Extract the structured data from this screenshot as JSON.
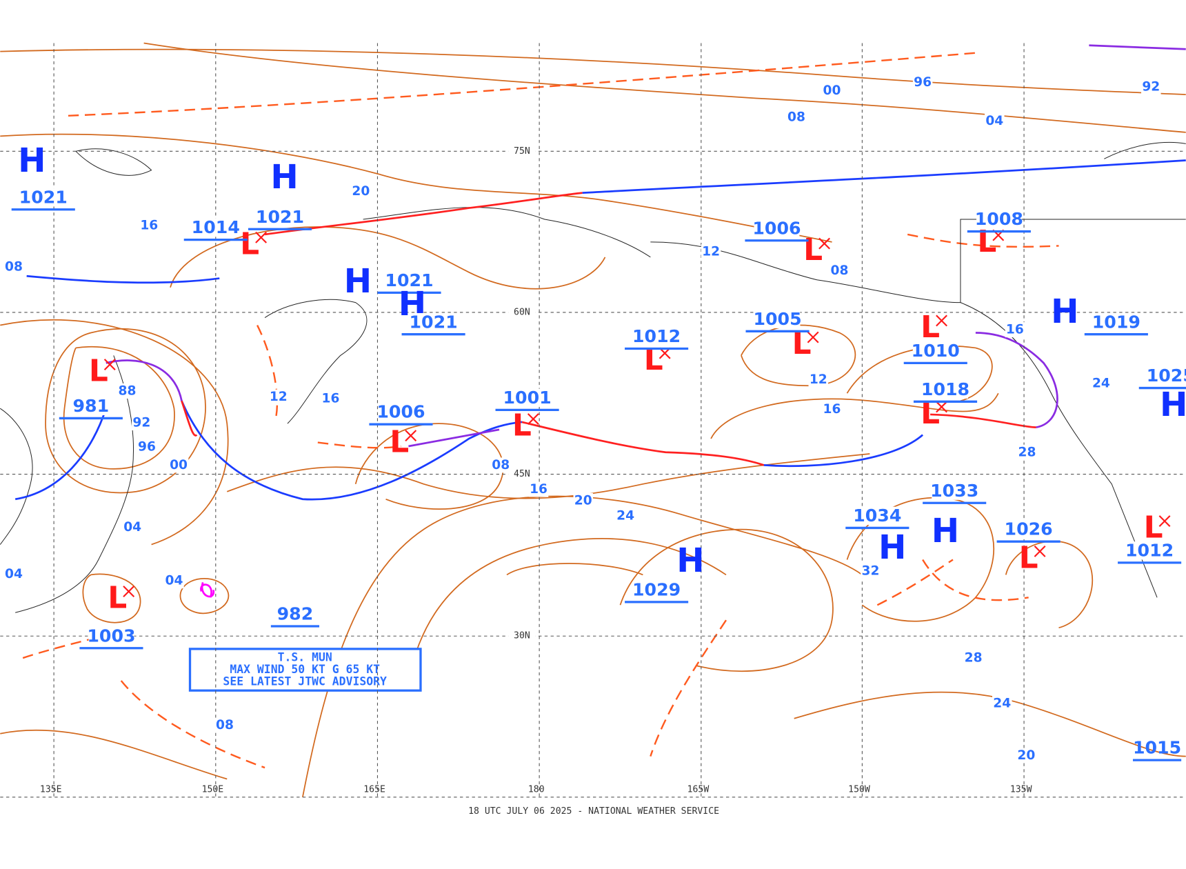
{
  "footer": "18 UTC JULY 06 2025 - NATIONAL WEATHER SERVICE",
  "latitude_labels": [
    "75N",
    "60N",
    "45N",
    "30N"
  ],
  "longitude_labels": [
    "135E",
    "150E",
    "165E",
    "180",
    "165W",
    "150W",
    "135W"
  ],
  "pressure_centers": [
    {
      "symbol": "H",
      "value": "1021"
    },
    {
      "symbol": "H",
      "value": "1021"
    },
    {
      "symbol": "L",
      "value": "1014"
    },
    {
      "symbol": "H",
      "value": "1021"
    },
    {
      "symbol": "H",
      "value": "1021"
    },
    {
      "symbol": "L",
      "value": "981"
    },
    {
      "symbol": "L",
      "value": "1006"
    },
    {
      "symbol": "L",
      "value": "1001"
    },
    {
      "symbol": "L",
      "value": "1012"
    },
    {
      "symbol": "L",
      "value": "1006"
    },
    {
      "symbol": "L",
      "value": "1005"
    },
    {
      "symbol": "L",
      "value": "1010"
    },
    {
      "symbol": "L",
      "value": "1008"
    },
    {
      "symbol": "H",
      "value": "1019"
    },
    {
      "symbol": "L",
      "value": "1018"
    },
    {
      "symbol": "H",
      "value": "1033"
    },
    {
      "symbol": "H",
      "value": "1034"
    },
    {
      "symbol": "H",
      "value": "1029"
    },
    {
      "symbol": "L",
      "value": "1026"
    },
    {
      "symbol": "L",
      "value": "1003"
    },
    {
      "symbol": "L",
      "value": "1012"
    },
    {
      "symbol": "H",
      "value": "1025"
    }
  ],
  "pressure_values": [
    "982",
    "1015"
  ],
  "isobar_labels": [
    "00",
    "96",
    "92",
    "08",
    "04",
    "20",
    "16",
    "08",
    "12",
    "08",
    "16",
    "12",
    "16",
    "88",
    "92",
    "96",
    "00",
    "12",
    "16",
    "08",
    "16",
    "20",
    "24",
    "28",
    "24",
    "04",
    "04",
    "04",
    "32",
    "28",
    "24",
    "20",
    "08"
  ],
  "advisory": [
    "T.S. MUN",
    "MAX WIND 50 KT G 65 KT",
    "SEE LATEST JTWC ADVISORY"
  ]
}
